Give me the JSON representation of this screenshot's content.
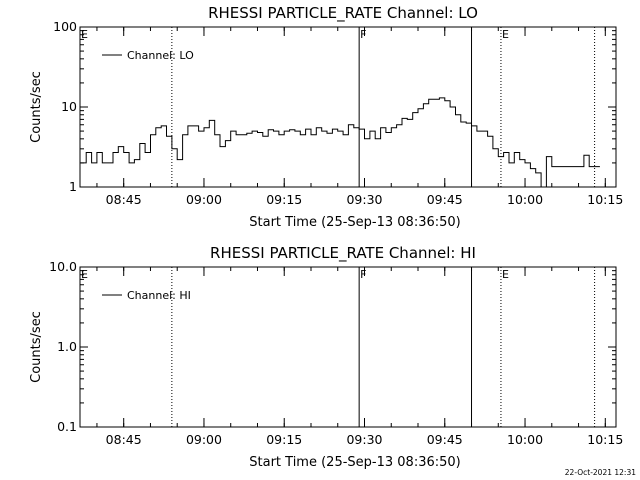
{
  "chart_data": [
    {
      "type": "line",
      "title": "RHESSI PARTICLE_RATE Channel: LO",
      "xlabel": "Start Time (25-Sep-13 08:36:50)",
      "ylabel": "Counts/sec",
      "yscale": "log",
      "ylim": [
        1,
        100
      ],
      "xlim": [
        "08:36:50",
        "10:17:00"
      ],
      "yticks": [
        "1",
        "10",
        "100"
      ],
      "xticks": [
        "08:45",
        "09:00",
        "09:15",
        "09:30",
        "09:45",
        "10:00",
        "10:15"
      ],
      "grid": false,
      "legend": "top-left",
      "series": [
        {
          "name": "Channel: LO",
          "x": [
            "08:37",
            "08:38",
            "08:39",
            "08:40",
            "08:41",
            "08:42",
            "08:43",
            "08:44",
            "08:45",
            "08:46",
            "08:47",
            "08:48",
            "08:49",
            "08:50",
            "08:51",
            "08:52",
            "08:53",
            "08:54",
            "08:55",
            "08:56",
            "08:57",
            "08:58",
            "08:59",
            "09:00",
            "09:01",
            "09:02",
            "09:03",
            "09:04",
            "09:05",
            "09:06",
            "09:07",
            "09:08",
            "09:09",
            "09:10",
            "09:11",
            "09:12",
            "09:13",
            "09:14",
            "09:15",
            "09:16",
            "09:17",
            "09:18",
            "09:19",
            "09:20",
            "09:21",
            "09:22",
            "09:23",
            "09:24",
            "09:25",
            "09:26",
            "09:27",
            "09:28",
            "09:29",
            "09:30",
            "09:31",
            "09:32",
            "09:33",
            "09:34",
            "09:35",
            "09:36",
            "09:37",
            "09:38",
            "09:39",
            "09:40",
            "09:41",
            "09:42",
            "09:43",
            "09:44",
            "09:45",
            "09:46",
            "09:47",
            "09:48",
            "09:49",
            "09:50",
            "09:51",
            "09:52",
            "09:53",
            "09:54",
            "09:55",
            "09:56",
            "09:57",
            "09:58",
            "09:59",
            "10:00",
            "10:01",
            "10:02",
            "10:03",
            "10:04",
            "10:05",
            "10:06",
            "10:07",
            "10:08",
            "10:09",
            "10:10",
            "10:11",
            "10:12",
            "10:13"
          ],
          "y": [
            2,
            2.7,
            2,
            2.7,
            2,
            2,
            2.7,
            3.2,
            2.7,
            2,
            2.2,
            3.5,
            2.7,
            4.5,
            5.5,
            5.8,
            4.3,
            3,
            2.2,
            4.5,
            5.8,
            5.8,
            5,
            5.5,
            6.8,
            4.5,
            3.2,
            3.8,
            5,
            4.5,
            4.5,
            4.7,
            5,
            4.8,
            4.3,
            5.2,
            5,
            4.5,
            5,
            5.2,
            5,
            4.5,
            5.3,
            4.5,
            5.5,
            5,
            4.7,
            5.3,
            5,
            4.5,
            6,
            5.5,
            5.3,
            4,
            5,
            4,
            5.5,
            4.8,
            5.5,
            6,
            7.2,
            7,
            8.5,
            9.5,
            11,
            12.5,
            12.5,
            13,
            12,
            10,
            8,
            6.5,
            6.3,
            5.8,
            5,
            5,
            4.3,
            3,
            2.4,
            2.7,
            2,
            2.7,
            2.2,
            2,
            1.7,
            1.5,
            1,
            2.4,
            1.8,
            1.8,
            1.8,
            1.8,
            1.8,
            1.8,
            2.5,
            1.8,
            1.8
          ]
        }
      ],
      "markers": [
        {
          "x": "08:54",
          "label": "",
          "style": "dotted"
        },
        {
          "x": "09:29",
          "label": "F",
          "style": "solid"
        },
        {
          "x": "09:50",
          "label": "",
          "style": "solid"
        },
        {
          "x": "09:55:30",
          "label": "E",
          "style": "dotted"
        },
        {
          "x": "10:13",
          "label": "",
          "style": "dotted"
        }
      ],
      "left_marker_label": "E"
    },
    {
      "type": "line",
      "title": "RHESSI PARTICLE_RATE Channel: HI",
      "xlabel": "Start Time (25-Sep-13 08:36:50)",
      "ylabel": "Counts/sec",
      "yscale": "log",
      "ylim": [
        0.1,
        10
      ],
      "xlim": [
        "08:36:50",
        "10:17:00"
      ],
      "yticks": [
        "0.1",
        "1.0",
        "10.0"
      ],
      "xticks": [
        "08:45",
        "09:00",
        "09:15",
        "09:30",
        "09:45",
        "10:00",
        "10:15"
      ],
      "grid": false,
      "legend": "top-left",
      "series": [
        {
          "name": "Channel: HI",
          "x": [],
          "y": []
        }
      ],
      "markers": [
        {
          "x": "08:54",
          "label": "",
          "style": "dotted"
        },
        {
          "x": "09:29",
          "label": "F",
          "style": "solid"
        },
        {
          "x": "09:50",
          "label": "",
          "style": "solid"
        },
        {
          "x": "09:55:30",
          "label": "E",
          "style": "dotted"
        },
        {
          "x": "10:13",
          "label": "",
          "style": "dotted"
        }
      ],
      "left_marker_label": "E"
    }
  ],
  "footer": {
    "timestamp": "22-Oct-2021 12:31"
  },
  "colors": {
    "background": "#ffffff",
    "foreground": "#000000"
  }
}
